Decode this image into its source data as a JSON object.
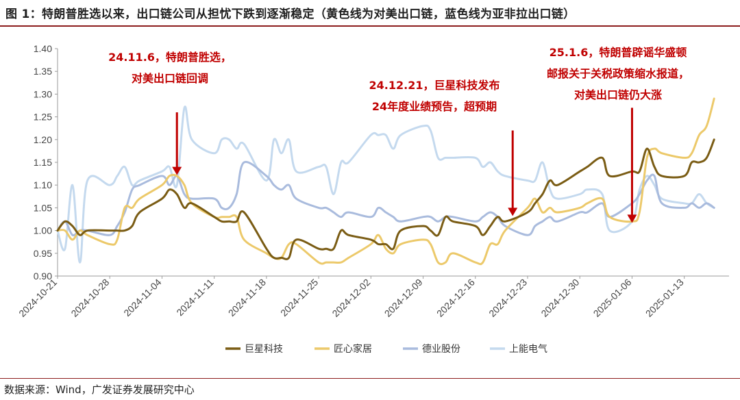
{
  "header": {
    "title": "图 1：特朗普胜选以来，出口链公司从担忧下跌到逐渐稳定（黄色线为对美出口链，蓝色线为亚非拉出口链）"
  },
  "footer": {
    "source": "数据来源：Wind，广发证券发展研究中心"
  },
  "colors": {
    "title_rule": "#8c1c1c",
    "annotation": "#c00000",
    "series": [
      "#7a5c14",
      "#ecc96a",
      "#a9bbdd",
      "#c4d9ee"
    ]
  },
  "chart_data": {
    "type": "line",
    "ylim": [
      0.9,
      1.4
    ],
    "yticks": [
      "1.40",
      "1.35",
      "1.30",
      "1.25",
      "1.20",
      "1.15",
      "1.10",
      "1.05",
      "1.00",
      "0.95",
      "0.90"
    ],
    "ytick_values": [
      1.4,
      1.35,
      1.3,
      1.25,
      1.2,
      1.15,
      1.1,
      1.05,
      1.0,
      0.95,
      0.9
    ],
    "xticks": [
      "2024-10-21",
      "2024-10-28",
      "2024-11-04",
      "2024-11-11",
      "2024-11-18",
      "2024-11-25",
      "2024-12-02",
      "2024-12-09",
      "2024-12-16",
      "2024-12-23",
      "2024-12-30",
      "2025-01-06",
      "2025-01-13"
    ],
    "xlim": [
      "2024-10-21",
      "2025-01-19"
    ],
    "grid": false,
    "legend_position": "bottom",
    "series": [
      {
        "name": "巨星科技",
        "points": [
          [
            "2024-10-21",
            1.0
          ],
          [
            "2024-10-22",
            1.02
          ],
          [
            "2024-10-23",
            1.01
          ],
          [
            "2024-10-24",
            0.99
          ],
          [
            "2024-10-25",
            1.0
          ],
          [
            "2024-10-28",
            1.0
          ],
          [
            "2024-10-29",
            1.0
          ],
          [
            "2024-10-30",
            1.0
          ],
          [
            "2024-10-31",
            1.01
          ],
          [
            "2024-11-01",
            1.04
          ],
          [
            "2024-11-04",
            1.07
          ],
          [
            "2024-11-05",
            1.09
          ],
          [
            "2024-11-06",
            1.08
          ],
          [
            "2024-11-07",
            1.05
          ],
          [
            "2024-11-08",
            1.06
          ],
          [
            "2024-11-11",
            1.03
          ],
          [
            "2024-11-12",
            1.02
          ],
          [
            "2024-11-13",
            1.02
          ],
          [
            "2024-11-14",
            1.02
          ],
          [
            "2024-11-15",
            1.04
          ],
          [
            "2024-11-18",
            0.96
          ],
          [
            "2024-11-19",
            0.94
          ],
          [
            "2024-11-20",
            0.94
          ],
          [
            "2024-11-21",
            0.94
          ],
          [
            "2024-11-22",
            0.98
          ],
          [
            "2024-11-25",
            0.96
          ],
          [
            "2024-11-26",
            0.96
          ],
          [
            "2024-11-27",
            0.96
          ],
          [
            "2024-11-28",
            1.0
          ],
          [
            "2024-11-29",
            0.99
          ],
          [
            "2024-12-02",
            0.98
          ],
          [
            "2024-12-03",
            0.97
          ],
          [
            "2024-12-04",
            0.97
          ],
          [
            "2024-12-05",
            0.96
          ],
          [
            "2024-12-06",
            1.0
          ],
          [
            "2024-12-09",
            1.01
          ],
          [
            "2024-12-10",
            1.0
          ],
          [
            "2024-12-11",
            0.99
          ],
          [
            "2024-12-12",
            1.03
          ],
          [
            "2024-12-13",
            1.02
          ],
          [
            "2024-12-16",
            1.01
          ],
          [
            "2024-12-17",
            0.99
          ],
          [
            "2024-12-18",
            1.01
          ],
          [
            "2024-12-19",
            1.03
          ],
          [
            "2024-12-20",
            1.02
          ],
          [
            "2024-12-23",
            1.04
          ],
          [
            "2024-12-24",
            1.06
          ],
          [
            "2024-12-25",
            1.08
          ],
          [
            "2024-12-26",
            1.11
          ],
          [
            "2024-12-27",
            1.1
          ],
          [
            "2024-12-30",
            1.13
          ],
          [
            "2024-12-31",
            1.14
          ],
          [
            "2025-01-02",
            1.16
          ],
          [
            "2025-01-03",
            1.12
          ],
          [
            "2025-01-06",
            1.13
          ],
          [
            "2025-01-07",
            1.13
          ],
          [
            "2025-01-08",
            1.18
          ],
          [
            "2025-01-09",
            1.14
          ],
          [
            "2025-01-10",
            1.12
          ],
          [
            "2025-01-13",
            1.12
          ],
          [
            "2025-01-14",
            1.15
          ],
          [
            "2025-01-15",
            1.15
          ],
          [
            "2025-01-16",
            1.16
          ],
          [
            "2025-01-17",
            1.2
          ]
        ]
      },
      {
        "name": "匠心家居",
        "points": [
          [
            "2024-10-21",
            1.0
          ],
          [
            "2024-10-22",
            1.0
          ],
          [
            "2024-10-23",
            0.98
          ],
          [
            "2024-10-24",
            1.0
          ],
          [
            "2024-10-25",
            0.99
          ],
          [
            "2024-10-28",
            0.97
          ],
          [
            "2024-10-29",
            0.98
          ],
          [
            "2024-10-30",
            1.05
          ],
          [
            "2024-10-31",
            1.05
          ],
          [
            "2024-11-01",
            1.07
          ],
          [
            "2024-11-04",
            1.1
          ],
          [
            "2024-11-05",
            1.12
          ],
          [
            "2024-11-06",
            1.12
          ],
          [
            "2024-11-07",
            1.1
          ],
          [
            "2024-11-08",
            1.06
          ],
          [
            "2024-11-11",
            1.03
          ],
          [
            "2024-11-12",
            1.03
          ],
          [
            "2024-11-13",
            1.03
          ],
          [
            "2024-11-14",
            1.03
          ],
          [
            "2024-11-15",
            0.98
          ],
          [
            "2024-11-18",
            0.95
          ],
          [
            "2024-11-19",
            0.94
          ],
          [
            "2024-11-20",
            0.94
          ],
          [
            "2024-11-21",
            0.97
          ],
          [
            "2024-11-22",
            0.97
          ],
          [
            "2024-11-25",
            0.93
          ],
          [
            "2024-11-26",
            0.93
          ],
          [
            "2024-11-27",
            0.93
          ],
          [
            "2024-11-28",
            0.93
          ],
          [
            "2024-11-29",
            0.94
          ],
          [
            "2024-12-02",
            0.97
          ],
          [
            "2024-12-03",
            0.99
          ],
          [
            "2024-12-04",
            0.96
          ],
          [
            "2024-12-05",
            0.95
          ],
          [
            "2024-12-06",
            0.97
          ],
          [
            "2024-12-09",
            0.98
          ],
          [
            "2024-12-10",
            0.97
          ],
          [
            "2024-12-11",
            0.93
          ],
          [
            "2024-12-12",
            0.93
          ],
          [
            "2024-12-13",
            0.95
          ],
          [
            "2024-12-16",
            0.93
          ],
          [
            "2024-12-17",
            0.93
          ],
          [
            "2024-12-18",
            0.97
          ],
          [
            "2024-12-19",
            0.97
          ],
          [
            "2024-12-20",
            1.0
          ],
          [
            "2024-12-23",
            1.05
          ],
          [
            "2024-12-24",
            1.07
          ],
          [
            "2024-12-25",
            1.04
          ],
          [
            "2024-12-26",
            1.05
          ],
          [
            "2024-12-27",
            1.04
          ],
          [
            "2024-12-30",
            1.05
          ],
          [
            "2024-12-31",
            1.06
          ],
          [
            "2025-01-02",
            1.07
          ],
          [
            "2025-01-03",
            1.03
          ],
          [
            "2025-01-06",
            1.02
          ],
          [
            "2025-01-07",
            1.04
          ],
          [
            "2025-01-08",
            1.16
          ],
          [
            "2025-01-09",
            1.18
          ],
          [
            "2025-01-10",
            1.17
          ],
          [
            "2025-01-13",
            1.16
          ],
          [
            "2025-01-14",
            1.17
          ],
          [
            "2025-01-15",
            1.21
          ],
          [
            "2025-01-16",
            1.23
          ],
          [
            "2025-01-17",
            1.29
          ]
        ]
      },
      {
        "name": "德业股份",
        "points": [
          [
            "2024-10-21",
            1.0
          ],
          [
            "2024-10-22",
            1.02
          ],
          [
            "2024-10-23",
            0.99
          ],
          [
            "2024-10-24",
            1.0
          ],
          [
            "2024-10-25",
            1.0
          ],
          [
            "2024-10-28",
            0.99
          ],
          [
            "2024-10-29",
            1.01
          ],
          [
            "2024-10-30",
            1.04
          ],
          [
            "2024-10-31",
            1.09
          ],
          [
            "2024-11-01",
            1.1
          ],
          [
            "2024-11-04",
            1.12
          ],
          [
            "2024-11-05",
            1.1
          ],
          [
            "2024-11-06",
            1.12
          ],
          [
            "2024-11-07",
            1.08
          ],
          [
            "2024-11-08",
            1.07
          ],
          [
            "2024-11-11",
            1.07
          ],
          [
            "2024-11-12",
            1.05
          ],
          [
            "2024-11-13",
            1.05
          ],
          [
            "2024-11-14",
            1.08
          ],
          [
            "2024-11-15",
            1.15
          ],
          [
            "2024-11-18",
            1.12
          ],
          [
            "2024-11-19",
            1.1
          ],
          [
            "2024-11-20",
            1.09
          ],
          [
            "2024-11-21",
            1.1
          ],
          [
            "2024-11-22",
            1.07
          ],
          [
            "2024-11-25",
            1.05
          ],
          [
            "2024-11-26",
            1.05
          ],
          [
            "2024-11-27",
            1.04
          ],
          [
            "2024-11-28",
            1.03
          ],
          [
            "2024-11-29",
            1.04
          ],
          [
            "2024-12-02",
            1.03
          ],
          [
            "2024-12-03",
            1.05
          ],
          [
            "2024-12-04",
            1.04
          ],
          [
            "2024-12-05",
            1.03
          ],
          [
            "2024-12-06",
            1.02
          ],
          [
            "2024-12-09",
            1.03
          ],
          [
            "2024-12-10",
            1.03
          ],
          [
            "2024-12-11",
            1.02
          ],
          [
            "2024-12-12",
            1.03
          ],
          [
            "2024-12-13",
            1.03
          ],
          [
            "2024-12-16",
            1.02
          ],
          [
            "2024-12-17",
            1.03
          ],
          [
            "2024-12-18",
            1.04
          ],
          [
            "2024-12-19",
            1.03
          ],
          [
            "2024-12-20",
            1.01
          ],
          [
            "2024-12-23",
            0.99
          ],
          [
            "2024-12-24",
            1.01
          ],
          [
            "2024-12-25",
            1.02
          ],
          [
            "2024-12-26",
            1.03
          ],
          [
            "2024-12-27",
            1.02
          ],
          [
            "2024-12-30",
            1.04
          ],
          [
            "2024-12-31",
            1.04
          ],
          [
            "2025-01-02",
            1.06
          ],
          [
            "2025-01-03",
            1.03
          ],
          [
            "2025-01-06",
            1.06
          ],
          [
            "2025-01-07",
            1.08
          ],
          [
            "2025-01-08",
            1.11
          ],
          [
            "2025-01-09",
            1.12
          ],
          [
            "2025-01-10",
            1.06
          ],
          [
            "2025-01-13",
            1.05
          ],
          [
            "2025-01-14",
            1.06
          ],
          [
            "2025-01-15",
            1.05
          ],
          [
            "2025-01-16",
            1.06
          ],
          [
            "2025-01-17",
            1.05
          ]
        ]
      },
      {
        "name": "上能电气",
        "points": [
          [
            "2024-10-21",
            1.0
          ],
          [
            "2024-10-22",
            0.96
          ],
          [
            "2024-10-23",
            1.1
          ],
          [
            "2024-10-24",
            0.93
          ],
          [
            "2024-10-25",
            1.11
          ],
          [
            "2024-10-28",
            1.1
          ],
          [
            "2024-10-29",
            1.12
          ],
          [
            "2024-10-30",
            1.14
          ],
          [
            "2024-10-31",
            1.1
          ],
          [
            "2024-11-01",
            1.11
          ],
          [
            "2024-11-04",
            1.13
          ],
          [
            "2024-11-05",
            1.14
          ],
          [
            "2024-11-06",
            1.1
          ],
          [
            "2024-11-07",
            1.27
          ],
          [
            "2024-11-08",
            1.2
          ],
          [
            "2024-11-11",
            1.17
          ],
          [
            "2024-11-12",
            1.2
          ],
          [
            "2024-11-13",
            1.2
          ],
          [
            "2024-11-14",
            1.18
          ],
          [
            "2024-11-15",
            1.19
          ],
          [
            "2024-11-18",
            1.11
          ],
          [
            "2024-11-19",
            1.2
          ],
          [
            "2024-11-20",
            1.17
          ],
          [
            "2024-11-21",
            1.2
          ],
          [
            "2024-11-22",
            1.13
          ],
          [
            "2024-11-25",
            1.14
          ],
          [
            "2024-11-26",
            1.14
          ],
          [
            "2024-11-27",
            1.08
          ],
          [
            "2024-11-28",
            1.15
          ],
          [
            "2024-11-29",
            1.15
          ],
          [
            "2024-12-02",
            1.21
          ],
          [
            "2024-12-03",
            1.21
          ],
          [
            "2024-12-04",
            1.21
          ],
          [
            "2024-12-05",
            1.18
          ],
          [
            "2024-12-06",
            1.21
          ],
          [
            "2024-12-09",
            1.23
          ],
          [
            "2024-12-10",
            1.22
          ],
          [
            "2024-12-11",
            1.16
          ],
          [
            "2024-12-12",
            1.16
          ],
          [
            "2024-12-13",
            1.16
          ],
          [
            "2024-12-16",
            1.16
          ],
          [
            "2024-12-17",
            1.14
          ],
          [
            "2024-12-18",
            1.15
          ],
          [
            "2024-12-19",
            1.13
          ],
          [
            "2024-12-20",
            1.12
          ],
          [
            "2024-12-23",
            1.11
          ],
          [
            "2024-12-24",
            1.11
          ],
          [
            "2024-12-25",
            1.15
          ],
          [
            "2024-12-26",
            1.09
          ],
          [
            "2024-12-27",
            1.07
          ],
          [
            "2024-12-30",
            1.08
          ],
          [
            "2024-12-31",
            1.09
          ],
          [
            "2025-01-02",
            1.08
          ],
          [
            "2025-01-03",
            1.0
          ],
          [
            "2025-01-06",
            1.02
          ],
          [
            "2025-01-07",
            1.09
          ],
          [
            "2025-01-08",
            1.12
          ],
          [
            "2025-01-09",
            1.1
          ],
          [
            "2025-01-10",
            1.07
          ],
          [
            "2025-01-13",
            1.06
          ],
          [
            "2025-01-14",
            1.06
          ],
          [
            "2025-01-15",
            1.08
          ],
          [
            "2025-01-16",
            1.06
          ],
          [
            "2025-01-17",
            1.05
          ]
        ]
      }
    ],
    "annotations": [
      {
        "lines": [
          "24.11.6，特朗普胜选，",
          "对美出口链回调"
        ],
        "arrow_from": [
          "2024-11-06",
          1.26
        ],
        "arrow_to": [
          "2024-11-06",
          1.125
        ]
      },
      {
        "lines": [
          "24.12.21，巨星科技发布",
          "24年度业绩预告，超预期"
        ],
        "arrow_from": [
          "2024-12-21",
          1.22
        ],
        "arrow_to": [
          "2024-12-21",
          1.035
        ]
      },
      {
        "lines": [
          "25.1.6，特朗普辟谣华盛顿",
          "邮报关于关税政策缩水报道，",
          "对美出口链仍大涨"
        ],
        "arrow_from": [
          "2025-01-06",
          1.27
        ],
        "arrow_to": [
          "2025-01-06",
          1.02
        ]
      }
    ]
  }
}
